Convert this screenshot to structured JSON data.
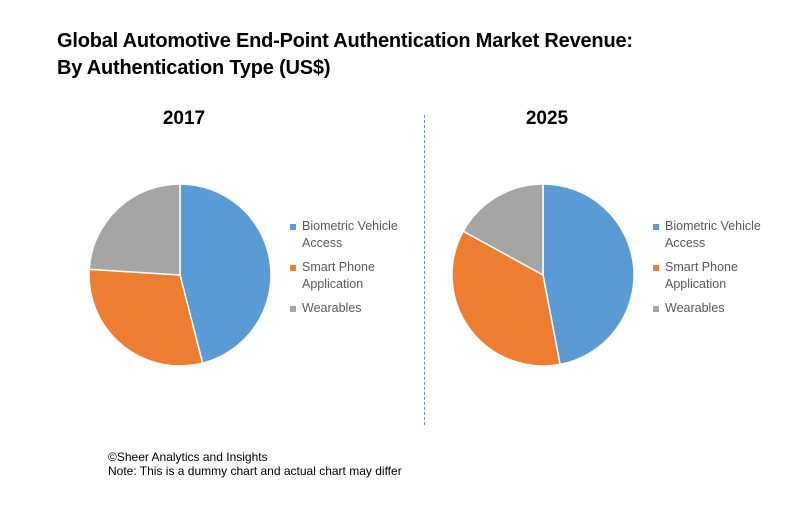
{
  "title_line1": "Global Automotive End-Point Authentication Market Revenue:",
  "title_line2": "By Authentication Type (US$)",
  "chart_data": [
    {
      "type": "pie",
      "title": "2017",
      "labels": [
        "Biometric Vehicle Access",
        "Smart Phone Application",
        "Wearables"
      ],
      "values": [
        46,
        30,
        24
      ],
      "colors": [
        "#5b9bd5",
        "#ed7d31",
        "#a5a5a5"
      ],
      "legend": "right"
    },
    {
      "type": "pie",
      "title": "2025",
      "labels": [
        "Biometric Vehicle Access",
        "Smart Phone Application",
        "Wearables"
      ],
      "values": [
        47,
        36,
        17
      ],
      "colors": [
        "#5b9bd5",
        "#ed7d31",
        "#a5a5a5"
      ],
      "legend": "right"
    }
  ],
  "footer": {
    "copyright": "©Sheer Analytics and Insights",
    "note": "Note: This is a dummy chart and actual chart may differ"
  }
}
